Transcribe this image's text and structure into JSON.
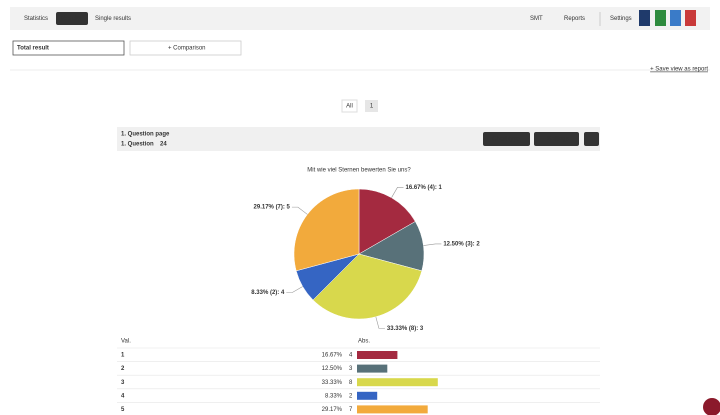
{
  "nav": {
    "tabs": [
      "Statistics",
      "Results",
      "Single results"
    ],
    "menus": [
      "SMT",
      "Reports"
    ],
    "settings": "Settings"
  },
  "filter": {
    "select": "Total result",
    "comparison": "+ Comparison",
    "save_link": "+ Save view as report"
  },
  "pagination": [
    "All",
    "1"
  ],
  "panel": {
    "page": "1. Question page",
    "question": "1. Question",
    "responses": "24",
    "buttons": [
      "Chart type",
      "Settings"
    ]
  },
  "chart_data": {
    "type": "pie",
    "title": "Mit wie viel Sternen bewerten Sie uns?",
    "categories": [
      "1",
      "2",
      "3",
      "4",
      "5"
    ],
    "values": [
      16.67,
      12.5,
      33.33,
      8.33,
      29.17
    ],
    "value_labels": [
      "16.67% (4): 1",
      "12.50% (3): 2",
      "33.33% (8): 3",
      "8.33% (2): 4",
      "29.17% (7): 5"
    ],
    "counts": [
      4,
      3,
      8,
      2,
      7
    ],
    "colors": [
      "#a42a40",
      "#587179",
      "#d8d84c",
      "#3565c3",
      "#f2aa3c"
    ]
  },
  "table": {
    "headers": [
      "Val.",
      "Abs."
    ],
    "rows": [
      [
        "1",
        "16.67%",
        "4"
      ],
      [
        "2",
        "12.50%",
        "3"
      ],
      [
        "3",
        "33.33%",
        "8"
      ],
      [
        "4",
        "8.33%",
        "2"
      ],
      [
        "5",
        "29.17%",
        "7"
      ]
    ]
  }
}
